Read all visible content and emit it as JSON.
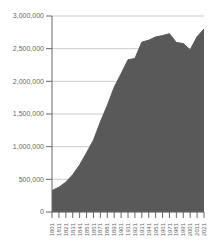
{
  "chart_data": {
    "type": "area",
    "x": [
      1801,
      1811,
      1821,
      1831,
      1841,
      1851,
      1861,
      1871,
      1881,
      1891,
      1901,
      1911,
      1921,
      1931,
      1941,
      1951,
      1961,
      1971,
      1981,
      1991,
      2001,
      2011,
      2021
    ],
    "values": [
      328000,
      380000,
      457000,
      572000,
      720000,
      906000,
      1100000,
      1380000,
      1630000,
      1910000,
      2116000,
      2330000,
      2350000,
      2600000,
      2630000,
      2680000,
      2700000,
      2729000,
      2595000,
      2578000,
      2482000,
      2683000,
      2800000
    ],
    "color": "#595959",
    "xlim": [
      1801,
      2021
    ],
    "xticks": [
      1801,
      1811,
      1821,
      1831,
      1841,
      1851,
      1861,
      1871,
      1881,
      1891,
      1901,
      1911,
      1921,
      1931,
      1941,
      1951,
      1961,
      1971,
      1981,
      1991,
      2001,
      2011,
      2021
    ],
    "ylim": [
      0,
      3000000
    ],
    "yticks": [
      0,
      {
        "value": 500000,
        "label": "500,000"
      },
      {
        "value": 1000000,
        "label": "1,000,000"
      },
      {
        "value": 1500000,
        "label": "1,500,000"
      },
      {
        "value": 2000000,
        "label": "2,000,000"
      },
      {
        "value": 2500000,
        "label": "2,500,000"
      },
      {
        "value": 3000000,
        "label": "3,000,000"
      }
    ],
    "grid": true
  }
}
